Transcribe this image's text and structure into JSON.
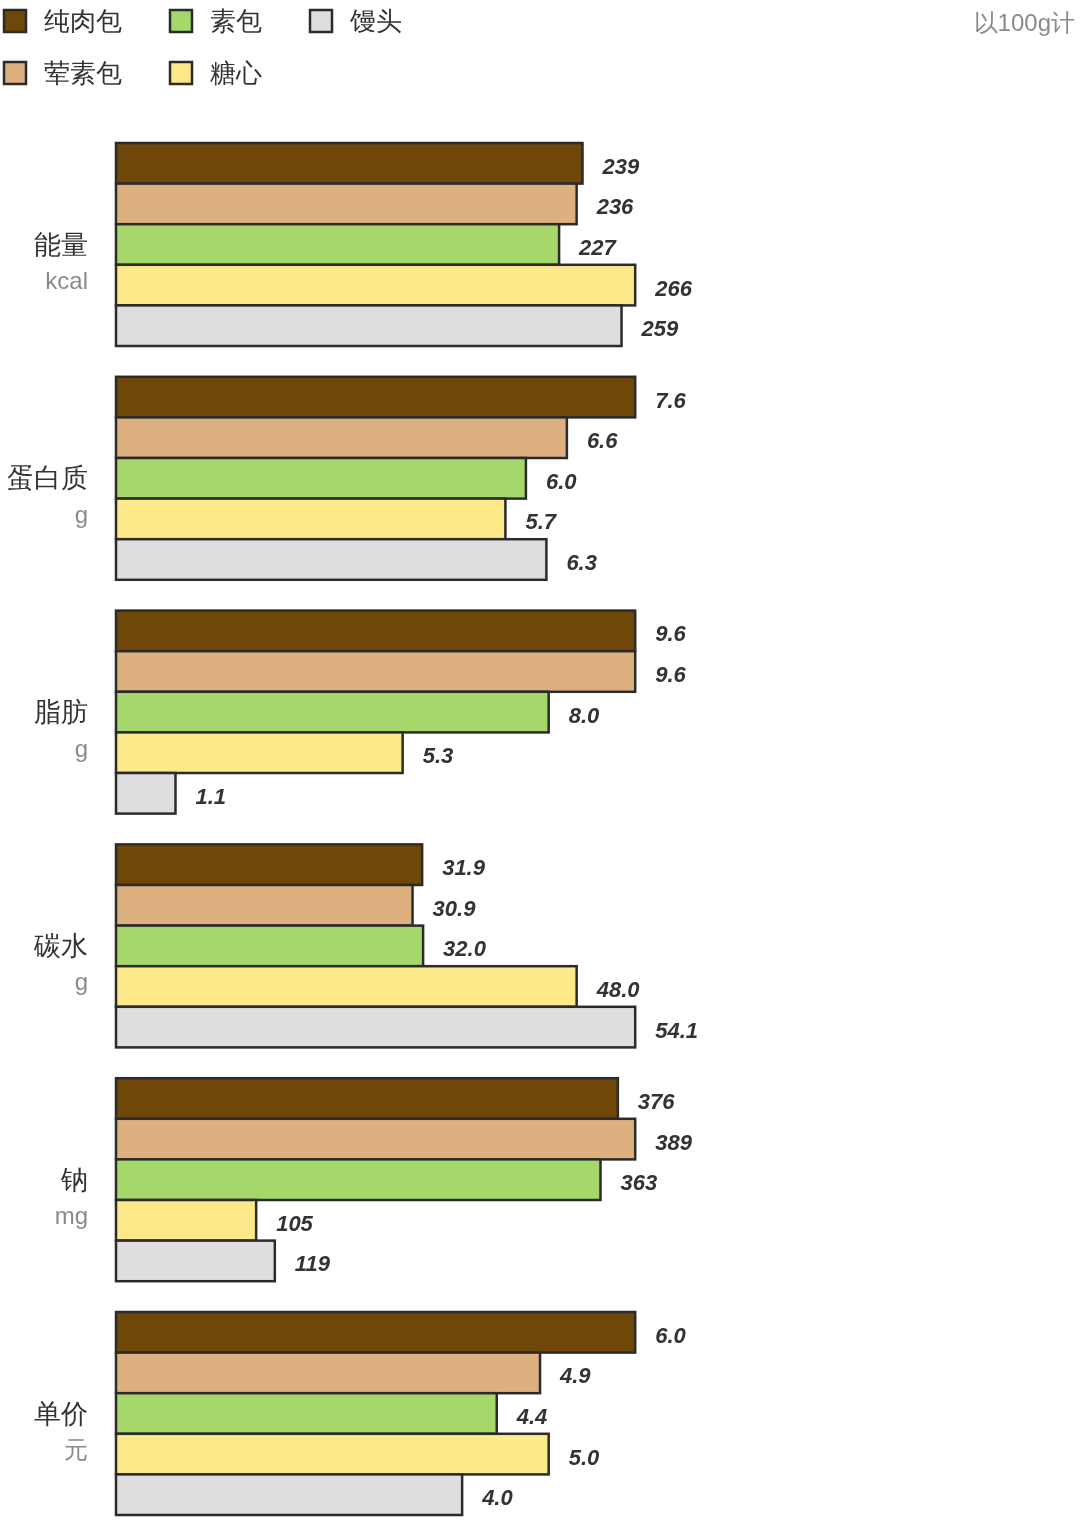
{
  "chart_data": [
    {
      "type": "bar",
      "orientation": "horizontal",
      "categories": [
        "能量"
      ],
      "xlabel": "kcal",
      "tick_labels": "y",
      "data_labels": true,
      "legend": "top left",
      "annotations": [
        "以100g计"
      ],
      "series": [
        {
          "name": "纯肉包",
          "color": "#6e4709",
          "values": [
            239
          ]
        },
        {
          "name": "荤素包",
          "color": "#dcb07f",
          "values": [
            236
          ]
        },
        {
          "name": "素包",
          "color": "#a6d76a",
          "values": [
            227
          ]
        },
        {
          "name": "糖心",
          "color": "#fde88a",
          "values": [
            266
          ]
        },
        {
          "name": "馒头",
          "color": "#dedde0",
          "values": [
            259
          ]
        }
      ]
    },
    {
      "type": "bar",
      "orientation": "horizontal",
      "categories": [
        "蛋白质"
      ],
      "xlabel": "g",
      "tick_labels": "y",
      "series": [
        {
          "color": "#6e4709",
          "values": [
            7.6
          ],
          "value_labels": [
            "7.6"
          ]
        },
        {
          "color": "#dcb07f",
          "values": [
            6.6
          ],
          "value_labels": [
            "6.6"
          ]
        },
        {
          "color": "#a6d76a",
          "values": [
            6.0
          ],
          "value_labels": [
            "6.0"
          ]
        },
        {
          "color": "#fde88a",
          "values": [
            5.7
          ],
          "value_labels": [
            "5.7"
          ]
        },
        {
          "color": "#dedde0",
          "values": [
            6.3
          ],
          "value_labels": [
            "6.3"
          ]
        }
      ]
    },
    {
      "type": "bar",
      "orientation": "horizontal",
      "categories": [
        "脂肪"
      ],
      "xlabel": "g",
      "tick_labels": "y",
      "series": [
        {
          "color": "#6e4709",
          "values": [
            9.6
          ],
          "value_labels": [
            "9.6"
          ]
        },
        {
          "color": "#dcb07f",
          "values": [
            9.6
          ],
          "value_labels": [
            "9.6"
          ]
        },
        {
          "color": "#a6d76a",
          "values": [
            8.0
          ],
          "value_labels": [
            "8.0"
          ]
        },
        {
          "color": "#fde88a",
          "values": [
            5.3
          ],
          "value_labels": [
            "5.3"
          ]
        },
        {
          "color": "#dedde0",
          "values": [
            1.1
          ],
          "value_labels": [
            "1.1"
          ]
        }
      ]
    },
    {
      "type": "bar",
      "orientation": "horizontal",
      "categories": [
        "碳水"
      ],
      "xlabel": "g",
      "tick_labels": "y",
      "series": [
        {
          "color": "#6e4709",
          "values": [
            31.9
          ],
          "value_labels": [
            "31.9"
          ]
        },
        {
          "color": "#dcb07f",
          "values": [
            30.9
          ],
          "value_labels": [
            "30.9"
          ]
        },
        {
          "color": "#a6d76a",
          "values": [
            32.0
          ],
          "value_labels": [
            "32.0"
          ]
        },
        {
          "color": "#fde88a",
          "values": [
            48.0
          ],
          "value_labels": [
            "48.0"
          ]
        },
        {
          "color": "#dedde0",
          "values": [
            54.1
          ],
          "value_labels": [
            "54.1"
          ]
        }
      ]
    },
    {
      "type": "bar",
      "orientation": "horizontal",
      "categories": [
        "钠"
      ],
      "xlabel": "mg",
      "tick_labels": "y",
      "data_labels": true,
      "series": [
        {
          "color": "#6e4709",
          "values": [
            376
          ]
        },
        {
          "color": "#dcb07f",
          "values": [
            389
          ]
        },
        {
          "color": "#a6d76a",
          "values": [
            363
          ]
        },
        {
          "color": "#fde88a",
          "values": [
            105
          ]
        },
        {
          "color": "#dedde0",
          "values": [
            119
          ]
        }
      ]
    },
    {
      "type": "bar",
      "orientation": "horizontal",
      "categories": [
        "单价"
      ],
      "xlabel": "元",
      "tick_labels": "y",
      "series": [
        {
          "color": "#6e4709",
          "values": [
            6.0
          ],
          "value_labels": [
            "6.0"
          ]
        },
        {
          "color": "#dcb07f",
          "values": [
            4.9
          ],
          "value_labels": [
            "4.9"
          ]
        },
        {
          "color": "#a6d76a",
          "values": [
            4.4
          ],
          "value_labels": [
            "4.4"
          ]
        },
        {
          "color": "#fde88a",
          "values": [
            5.0
          ],
          "value_labels": [
            "5.0"
          ]
        },
        {
          "color": "#dedde0",
          "values": [
            4.0
          ],
          "value_labels": [
            "4.0"
          ]
        }
      ]
    }
  ]
}
